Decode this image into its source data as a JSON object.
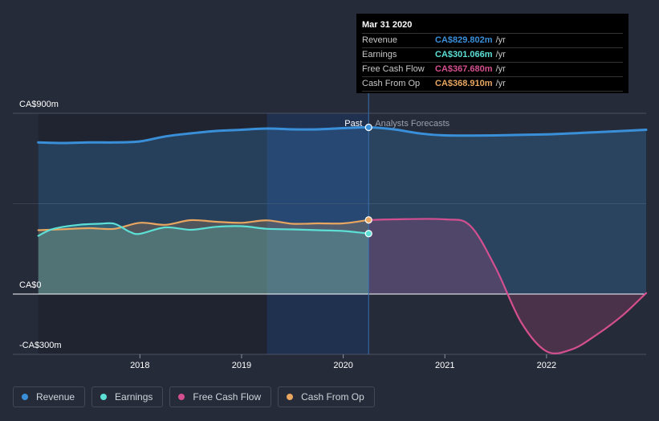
{
  "chart_data": {
    "type": "area",
    "y_axis": {
      "labels": [
        {
          "text": "CA$900m",
          "value": 900
        },
        {
          "text": "CA$0",
          "value": 0
        },
        {
          "text": "-CA$300m",
          "value": -300
        }
      ],
      "ylim": [
        -300,
        900
      ]
    },
    "x_axis": {
      "labels": [
        "2018",
        "2019",
        "2020",
        "2021",
        "2022"
      ],
      "tick_values": [
        2018,
        2019,
        2020,
        2021,
        2022
      ],
      "xlim": [
        2016.75,
        2022.98
      ]
    },
    "divider": {
      "x": 2020.25,
      "past_label": "Past",
      "forecast_label": "Analysts Forecasts"
    },
    "series": [
      {
        "name": "Revenue",
        "color": "#3a8fd9",
        "points": [
          [
            2017.0,
            755
          ],
          [
            2017.25,
            752
          ],
          [
            2017.5,
            755
          ],
          [
            2017.75,
            755
          ],
          [
            2018.0,
            760
          ],
          [
            2018.25,
            785
          ],
          [
            2018.5,
            800
          ],
          [
            2018.75,
            812
          ],
          [
            2019.0,
            818
          ],
          [
            2019.25,
            824
          ],
          [
            2019.5,
            820
          ],
          [
            2019.75,
            820
          ],
          [
            2020.0,
            826
          ],
          [
            2020.25,
            830
          ],
          [
            2020.5,
            820
          ],
          [
            2020.75,
            800
          ],
          [
            2021.0,
            790
          ],
          [
            2021.5,
            790
          ],
          [
            2022.0,
            795
          ],
          [
            2022.5,
            806
          ],
          [
            2022.98,
            818
          ]
        ]
      },
      {
        "name": "Earnings",
        "color": "#5ce0d6",
        "points": [
          [
            2017.0,
            290
          ],
          [
            2017.15,
            325
          ],
          [
            2017.4,
            345
          ],
          [
            2017.6,
            350
          ],
          [
            2017.75,
            350
          ],
          [
            2017.9,
            310
          ],
          [
            2018.0,
            300
          ],
          [
            2018.25,
            332
          ],
          [
            2018.5,
            320
          ],
          [
            2018.75,
            335
          ],
          [
            2019.0,
            338
          ],
          [
            2019.25,
            325
          ],
          [
            2019.5,
            322
          ],
          [
            2019.75,
            318
          ],
          [
            2020.0,
            314
          ],
          [
            2020.25,
            301
          ]
        ]
      },
      {
        "name": "Free Cash Flow",
        "color": "#d44f8f",
        "points": [
          [
            2020.25,
            368
          ],
          [
            2020.5,
            372
          ],
          [
            2021.0,
            372
          ],
          [
            2021.25,
            340
          ],
          [
            2021.5,
            130
          ],
          [
            2021.75,
            -140
          ],
          [
            2022.0,
            -285
          ],
          [
            2022.25,
            -275
          ],
          [
            2022.5,
            -200
          ],
          [
            2022.75,
            -105
          ],
          [
            2022.98,
            5
          ]
        ]
      },
      {
        "name": "Cash From Op",
        "color": "#e8a661",
        "points": [
          [
            2017.0,
            318
          ],
          [
            2017.25,
            323
          ],
          [
            2017.5,
            328
          ],
          [
            2017.75,
            325
          ],
          [
            2018.0,
            355
          ],
          [
            2018.25,
            345
          ],
          [
            2018.5,
            368
          ],
          [
            2018.75,
            360
          ],
          [
            2019.0,
            355
          ],
          [
            2019.25,
            367
          ],
          [
            2019.5,
            350
          ],
          [
            2019.75,
            352
          ],
          [
            2020.0,
            352
          ],
          [
            2020.25,
            369
          ]
        ]
      }
    ]
  },
  "tooltip": {
    "date": "Mar 31 2020",
    "rows": [
      {
        "label": "Revenue",
        "value": "CA$829.802m",
        "unit": "/yr",
        "color": "#3a8fd9"
      },
      {
        "label": "Earnings",
        "value": "CA$301.066m",
        "unit": "/yr",
        "color": "#5ce0d6"
      },
      {
        "label": "Free Cash Flow",
        "value": "CA$367.680m",
        "unit": "/yr",
        "color": "#d44f8f"
      },
      {
        "label": "Cash From Op",
        "value": "CA$368.910m",
        "unit": "/yr",
        "color": "#e8a661"
      }
    ]
  },
  "legend": [
    {
      "label": "Revenue",
      "color": "#3a8fd9"
    },
    {
      "label": "Earnings",
      "color": "#5ce0d6"
    },
    {
      "label": "Free Cash Flow",
      "color": "#d44f8f"
    },
    {
      "label": "Cash From Op",
      "color": "#e8a661"
    }
  ]
}
